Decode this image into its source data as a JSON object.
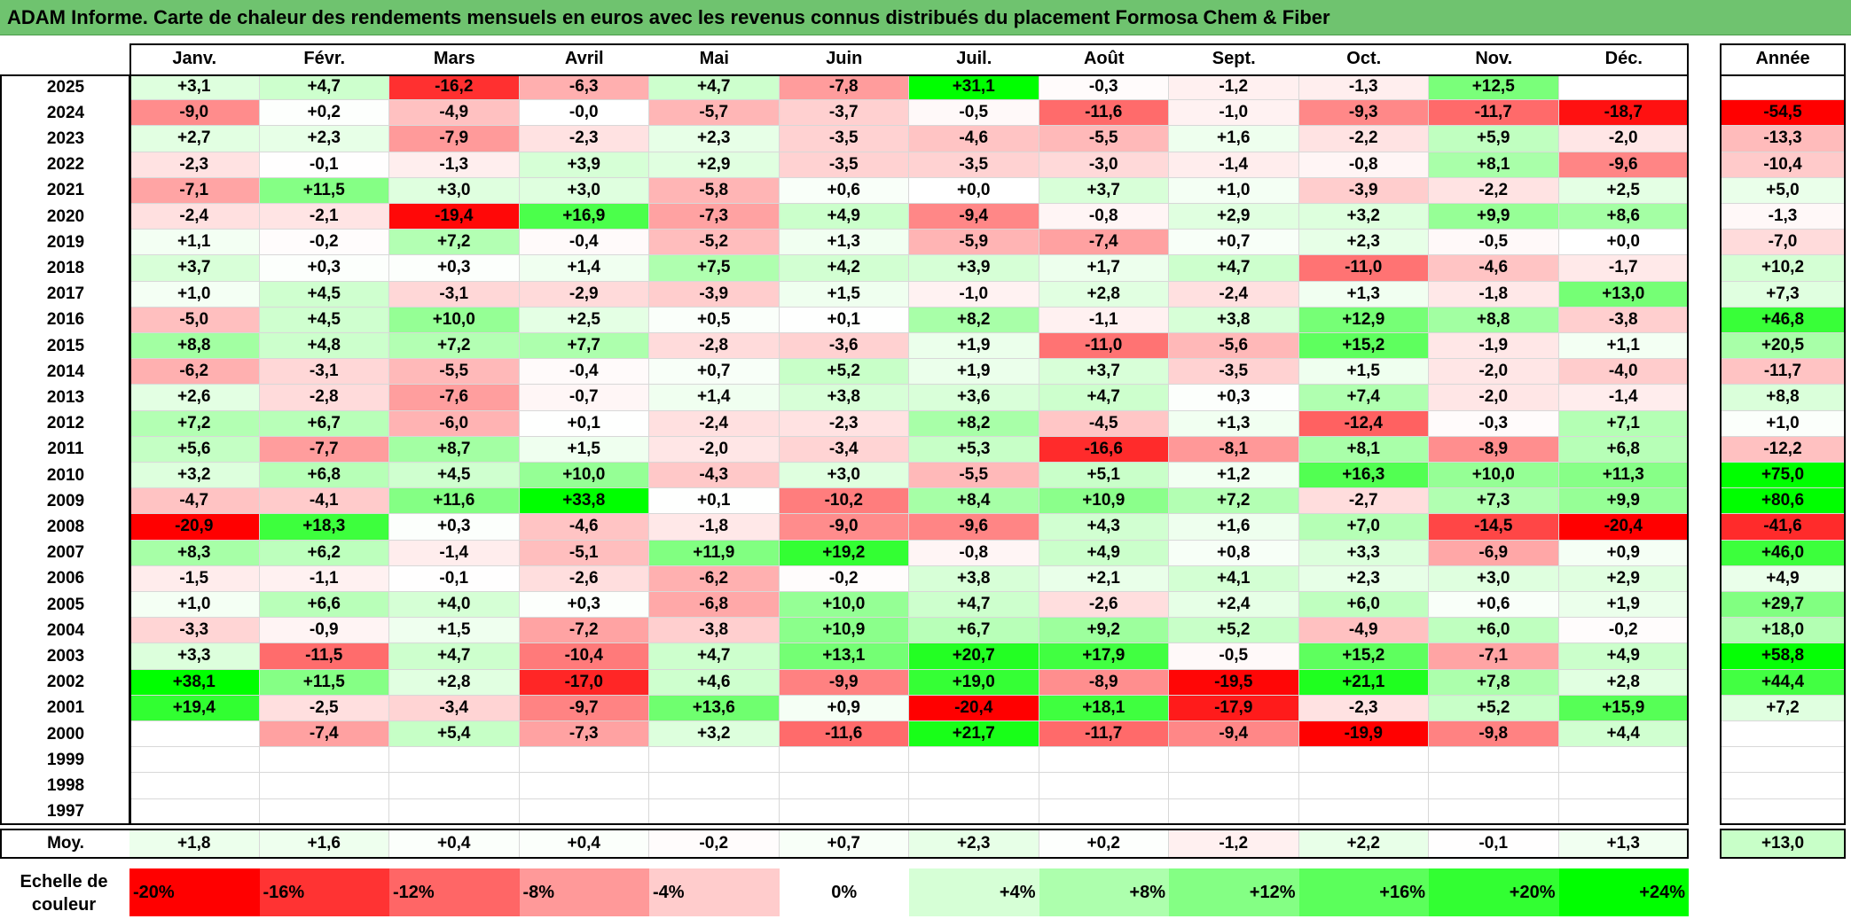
{
  "title": "ADAM Informe. Carte de chaleur des rendements mensuels en euros avec les revenus connus distribués du placement Formosa Chem & Fiber",
  "chart_data": {
    "type": "heatmap",
    "title": "ADAM Informe. Carte de chaleur des rendements mensuels en euros avec les revenus connus distribués du placement Formosa Chem & Fiber",
    "months": [
      "Janv.",
      "Févr.",
      "Mars",
      "Avril",
      "Mai",
      "Juin",
      "Juil.",
      "Août",
      "Sept.",
      "Oct.",
      "Nov.",
      "Déc."
    ],
    "annual_header": "Année",
    "rows": [
      {
        "year": "2025",
        "values": [
          "+3,1",
          "+4,7",
          "-16,2",
          "-6,3",
          "+4,7",
          "-7,8",
          "+31,1",
          "-0,3",
          "-1,2",
          "-1,3",
          "+12,5",
          ""
        ],
        "annual": ""
      },
      {
        "year": "2024",
        "values": [
          "-9,0",
          "+0,2",
          "-4,9",
          "-0,0",
          "-5,7",
          "-3,7",
          "-0,5",
          "-11,6",
          "-1,0",
          "-9,3",
          "-11,7",
          "-18,7"
        ],
        "annual": "-54,5"
      },
      {
        "year": "2023",
        "values": [
          "+2,7",
          "+2,3",
          "-7,9",
          "-2,3",
          "+2,3",
          "-3,5",
          "-4,6",
          "-5,5",
          "+1,6",
          "-2,2",
          "+5,9",
          "-2,0"
        ],
        "annual": "-13,3"
      },
      {
        "year": "2022",
        "values": [
          "-2,3",
          "-0,1",
          "-1,3",
          "+3,9",
          "+2,9",
          "-3,5",
          "-3,5",
          "-3,0",
          "-1,4",
          "-0,8",
          "+8,1",
          "-9,6"
        ],
        "annual": "-10,4"
      },
      {
        "year": "2021",
        "values": [
          "-7,1",
          "+11,5",
          "+3,0",
          "+3,0",
          "-5,8",
          "+0,6",
          "+0,0",
          "+3,7",
          "+1,0",
          "-3,9",
          "-2,2",
          "+2,5"
        ],
        "annual": "+5,0"
      },
      {
        "year": "2020",
        "values": [
          "-2,4",
          "-2,1",
          "-19,4",
          "+16,9",
          "-7,3",
          "+4,9",
          "-9,4",
          "-0,8",
          "+2,9",
          "+3,2",
          "+9,9",
          "+8,6"
        ],
        "annual": "-1,3"
      },
      {
        "year": "2019",
        "values": [
          "+1,1",
          "-0,2",
          "+7,2",
          "-0,4",
          "-5,2",
          "+1,3",
          "-5,9",
          "-7,4",
          "+0,7",
          "+2,3",
          "-0,5",
          "+0,0"
        ],
        "annual": "-7,0"
      },
      {
        "year": "2018",
        "values": [
          "+3,7",
          "+0,3",
          "+0,3",
          "+1,4",
          "+7,5",
          "+4,2",
          "+3,9",
          "+1,7",
          "+4,7",
          "-11,0",
          "-4,6",
          "-1,7"
        ],
        "annual": "+10,2"
      },
      {
        "year": "2017",
        "values": [
          "+1,0",
          "+4,5",
          "-3,1",
          "-2,9",
          "-3,9",
          "+1,5",
          "-1,0",
          "+2,8",
          "-2,4",
          "+1,3",
          "-1,8",
          "+13,0"
        ],
        "annual": "+7,3"
      },
      {
        "year": "2016",
        "values": [
          "-5,0",
          "+4,5",
          "+10,0",
          "+2,5",
          "+0,5",
          "+0,1",
          "+8,2",
          "-1,1",
          "+3,8",
          "+12,9",
          "+8,8",
          "-3,8"
        ],
        "annual": "+46,8"
      },
      {
        "year": "2015",
        "values": [
          "+8,8",
          "+4,8",
          "+7,2",
          "+7,7",
          "-2,8",
          "-3,6",
          "+1,9",
          "-11,0",
          "-5,6",
          "+15,2",
          "-1,9",
          "+1,1"
        ],
        "annual": "+20,5"
      },
      {
        "year": "2014",
        "values": [
          "-6,2",
          "-3,1",
          "-5,5",
          "-0,4",
          "+0,7",
          "+5,2",
          "+1,9",
          "+3,7",
          "-3,5",
          "+1,5",
          "-2,0",
          "-4,0"
        ],
        "annual": "-11,7"
      },
      {
        "year": "2013",
        "values": [
          "+2,6",
          "-2,8",
          "-7,6",
          "-0,7",
          "+1,4",
          "+3,8",
          "+3,6",
          "+4,7",
          "+0,3",
          "+7,4",
          "-2,0",
          "-1,4"
        ],
        "annual": "+8,8"
      },
      {
        "year": "2012",
        "values": [
          "+7,2",
          "+6,7",
          "-6,0",
          "+0,1",
          "-2,4",
          "-2,3",
          "+8,2",
          "-4,5",
          "+1,3",
          "-12,4",
          "-0,3",
          "+7,1"
        ],
        "annual": "+1,0"
      },
      {
        "year": "2011",
        "values": [
          "+5,6",
          "-7,7",
          "+8,7",
          "+1,5",
          "-2,0",
          "-3,4",
          "+5,3",
          "-16,6",
          "-8,1",
          "+8,1",
          "-8,9",
          "+6,8"
        ],
        "annual": "-12,2"
      },
      {
        "year": "2010",
        "values": [
          "+3,2",
          "+6,8",
          "+4,5",
          "+10,0",
          "-4,3",
          "+3,0",
          "-5,5",
          "+5,1",
          "+1,2",
          "+16,3",
          "+10,0",
          "+11,3"
        ],
        "annual": "+75,0"
      },
      {
        "year": "2009",
        "values": [
          "-4,7",
          "-4,1",
          "+11,6",
          "+33,8",
          "+0,1",
          "-10,2",
          "+8,4",
          "+10,9",
          "+7,2",
          "-2,7",
          "+7,3",
          "+9,9"
        ],
        "annual": "+80,6"
      },
      {
        "year": "2008",
        "values": [
          "-20,9",
          "+18,3",
          "+0,3",
          "-4,6",
          "-1,8",
          "-9,0",
          "-9,6",
          "+4,3",
          "+1,6",
          "+7,0",
          "-14,5",
          "-20,4"
        ],
        "annual": "-41,6"
      },
      {
        "year": "2007",
        "values": [
          "+8,3",
          "+6,2",
          "-1,4",
          "-5,1",
          "+11,9",
          "+19,2",
          "-0,8",
          "+4,9",
          "+0,8",
          "+3,3",
          "-6,9",
          "+0,9"
        ],
        "annual": "+46,0"
      },
      {
        "year": "2006",
        "values": [
          "-1,5",
          "-1,1",
          "-0,1",
          "-2,6",
          "-6,2",
          "-0,2",
          "+3,8",
          "+2,1",
          "+4,1",
          "+2,3",
          "+3,0",
          "+2,9"
        ],
        "annual": "+4,9"
      },
      {
        "year": "2005",
        "values": [
          "+1,0",
          "+6,6",
          "+4,0",
          "+0,3",
          "-6,8",
          "+10,0",
          "+4,7",
          "-2,6",
          "+2,4",
          "+6,0",
          "+0,6",
          "+1,9"
        ],
        "annual": "+29,7"
      },
      {
        "year": "2004",
        "values": [
          "-3,3",
          "-0,9",
          "+1,5",
          "-7,2",
          "-3,8",
          "+10,9",
          "+6,7",
          "+9,2",
          "+5,2",
          "-4,9",
          "+6,0",
          "-0,2"
        ],
        "annual": "+18,0"
      },
      {
        "year": "2003",
        "values": [
          "+3,3",
          "-11,5",
          "+4,7",
          "-10,4",
          "+4,7",
          "+13,1",
          "+20,7",
          "+17,9",
          "-0,5",
          "+15,2",
          "-7,1",
          "+4,9"
        ],
        "annual": "+58,8"
      },
      {
        "year": "2002",
        "values": [
          "+38,1",
          "+11,5",
          "+2,8",
          "-17,0",
          "+4,6",
          "-9,9",
          "+19,0",
          "-8,9",
          "-19,5",
          "+21,1",
          "+7,8",
          "+2,8"
        ],
        "annual": "+44,4"
      },
      {
        "year": "2001",
        "values": [
          "+19,4",
          "-2,5",
          "-3,4",
          "-9,7",
          "+13,6",
          "+0,9",
          "-20,4",
          "+18,1",
          "-17,9",
          "-2,3",
          "+5,2",
          "+15,9"
        ],
        "annual": "+7,2"
      },
      {
        "year": "2000",
        "values": [
          "",
          "-7,4",
          "+5,4",
          "-7,3",
          "+3,2",
          "-11,6",
          "+21,7",
          "-11,7",
          "-9,4",
          "-19,9",
          "-9,8",
          "+4,4"
        ],
        "annual": ""
      },
      {
        "year": "1999",
        "values": [
          "",
          "",
          "",
          "",
          "",
          "",
          "",
          "",
          "",
          "",
          "",
          ""
        ],
        "annual": ""
      },
      {
        "year": "1998",
        "values": [
          "",
          "",
          "",
          "",
          "",
          "",
          "",
          "",
          "",
          "",
          "",
          ""
        ],
        "annual": ""
      },
      {
        "year": "1997",
        "values": [
          "",
          "",
          "",
          "",
          "",
          "",
          "",
          "",
          "",
          "",
          "",
          ""
        ],
        "annual": ""
      }
    ],
    "average": {
      "label": "Moy.",
      "values": [
        "+1,8",
        "+1,6",
        "+0,4",
        "+0,4",
        "-0,2",
        "+0,7",
        "+2,3",
        "+0,2",
        "-1,2",
        "+2,2",
        "-0,1",
        "+1,3"
      ],
      "annual": "+13,0"
    },
    "color_scale": {
      "label": "Echelle de couleur",
      "steps": [
        {
          "label": "-20%",
          "value": -20,
          "color": "#ff0000"
        },
        {
          "label": "-16%",
          "value": -16,
          "color": "#ff3333"
        },
        {
          "label": "-12%",
          "value": -12,
          "color": "#ff6666"
        },
        {
          "label": "-8%",
          "value": -8,
          "color": "#ff9999"
        },
        {
          "label": "-4%",
          "value": -4,
          "color": "#ffcccc"
        },
        {
          "label": "0%",
          "value": 0,
          "color": "#ffffff"
        },
        {
          "label": "+4%",
          "value": 4,
          "color": "#d6ffd6"
        },
        {
          "label": "+8%",
          "value": 8,
          "color": "#adffad"
        },
        {
          "label": "+12%",
          "value": 12,
          "color": "#84ff84"
        },
        {
          "label": "+16%",
          "value": 16,
          "color": "#5bff5b"
        },
        {
          "label": "+20%",
          "value": 20,
          "color": "#32ff32"
        },
        {
          "label": "+24%",
          "value": 24,
          "color": "#00ff00"
        }
      ]
    }
  }
}
